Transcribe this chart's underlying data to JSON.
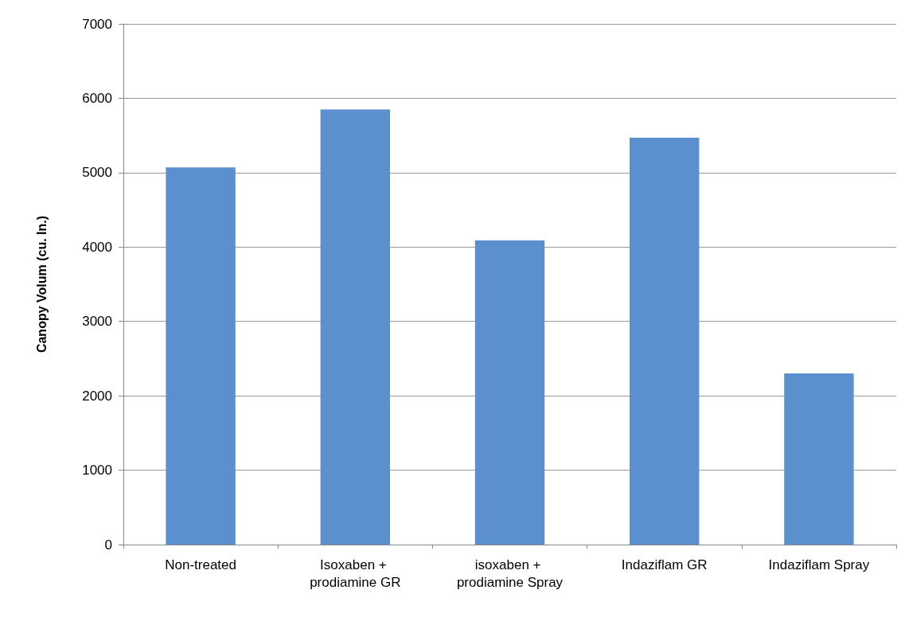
{
  "chart_data": {
    "type": "bar",
    "ylabel": "Canopy Volum (cu. In.)",
    "categories": [
      "Non-treated",
      "Isoxaben + prodiamine GR",
      "isoxaben + prodiamine Spray",
      "Indaziflam GR",
      "Indaziflam Spray"
    ],
    "values": [
      5070,
      5850,
      4090,
      5470,
      2300
    ],
    "color": "#5b8fce",
    "ylim": [
      0,
      7000
    ],
    "yticks": [
      0,
      1000,
      2000,
      3000,
      4000,
      5000,
      6000,
      7000
    ],
    "grid": "y"
  }
}
